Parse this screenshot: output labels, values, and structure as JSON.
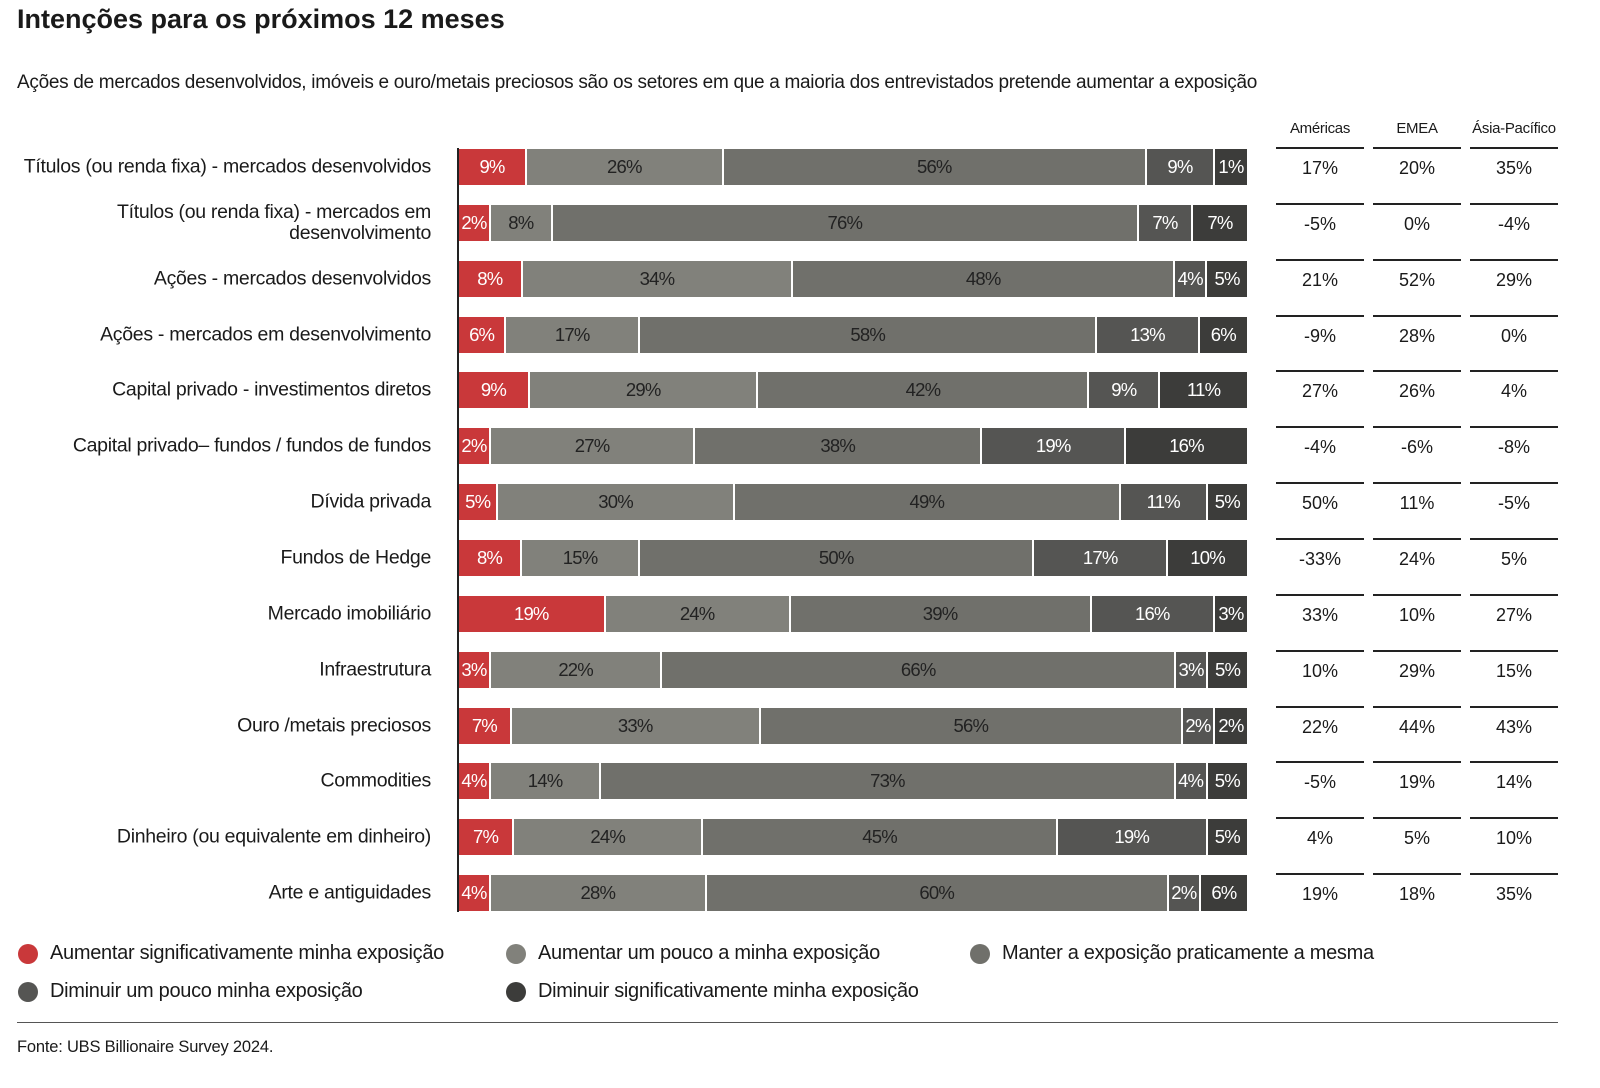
{
  "chart_data": {
    "type": "bar",
    "orientation": "horizontal-stacked-100",
    "title": "Intenções para os próximos 12 meses",
    "subtitle": "Ações de mercados desenvolvidos, imóveis e ouro/metais preciosos são os setores em que a maioria dos entrevistados pretende aumentar a exposição",
    "categories": [
      "Títulos (ou renda fixa) - mercados desenvolvidos",
      "Títulos (ou renda fixa) - mercados em desenvolvimento",
      "Ações - mercados desenvolvidos",
      "Ações - mercados em desenvolvimento",
      "Capital privado - investimentos diretos",
      "Capital privado– fundos / fundos de fundos",
      "Dívida privada",
      "Fundos de Hedge",
      "Mercado imobiliário",
      "Infraestrutura",
      "Ouro /metais preciosos",
      "Commodities",
      "Dinheiro (ou equivalente em dinheiro)",
      "Arte e antiguidades"
    ],
    "series": [
      {
        "name": "Aumentar significativamente minha exposição",
        "color": "#c9383a",
        "values": [
          9,
          2,
          8,
          6,
          9,
          2,
          5,
          8,
          19,
          3,
          7,
          4,
          7,
          4
        ]
      },
      {
        "name": "Aumentar um pouco a minha exposição",
        "color": "#81817b",
        "values": [
          26,
          8,
          34,
          17,
          29,
          27,
          30,
          15,
          24,
          22,
          33,
          14,
          24,
          28
        ]
      },
      {
        "name": "Manter a exposição praticamente a mesma",
        "color": "#70706b",
        "values": [
          56,
          76,
          48,
          58,
          42,
          38,
          49,
          50,
          39,
          66,
          56,
          73,
          45,
          60
        ]
      },
      {
        "name": "Diminuir um pouco minha exposição",
        "color": "#555553",
        "values": [
          9,
          7,
          4,
          13,
          9,
          19,
          11,
          17,
          16,
          3,
          2,
          4,
          19,
          2
        ]
      },
      {
        "name": "Diminuir significativamente minha exposição",
        "color": "#3c3c3a",
        "values": [
          1,
          7,
          5,
          6,
          11,
          16,
          5,
          10,
          3,
          5,
          2,
          5,
          5,
          6
        ]
      }
    ],
    "value_format": "percent",
    "legend_position": "bottom",
    "grid": false,
    "table": {
      "columns": [
        "Américas",
        "EMEA",
        "Ásia-Pacífico"
      ],
      "rows": [
        [
          "17%",
          "20%",
          "35%"
        ],
        [
          "-5%",
          "0%",
          "-4%"
        ],
        [
          "21%",
          "52%",
          "29%"
        ],
        [
          "-9%",
          "28%",
          "0%"
        ],
        [
          "27%",
          "26%",
          "4%"
        ],
        [
          "-4%",
          "-6%",
          "-8%"
        ],
        [
          "50%",
          "11%",
          "-5%"
        ],
        [
          "-33%",
          "24%",
          "5%"
        ],
        [
          "33%",
          "10%",
          "27%"
        ],
        [
          "10%",
          "29%",
          "15%"
        ],
        [
          "22%",
          "44%",
          "43%"
        ],
        [
          "-5%",
          "19%",
          "14%"
        ],
        [
          "4%",
          "5%",
          "10%"
        ],
        [
          "19%",
          "18%",
          "35%"
        ]
      ]
    },
    "source": "Fonte: UBS Billionaire Survey 2024."
  }
}
